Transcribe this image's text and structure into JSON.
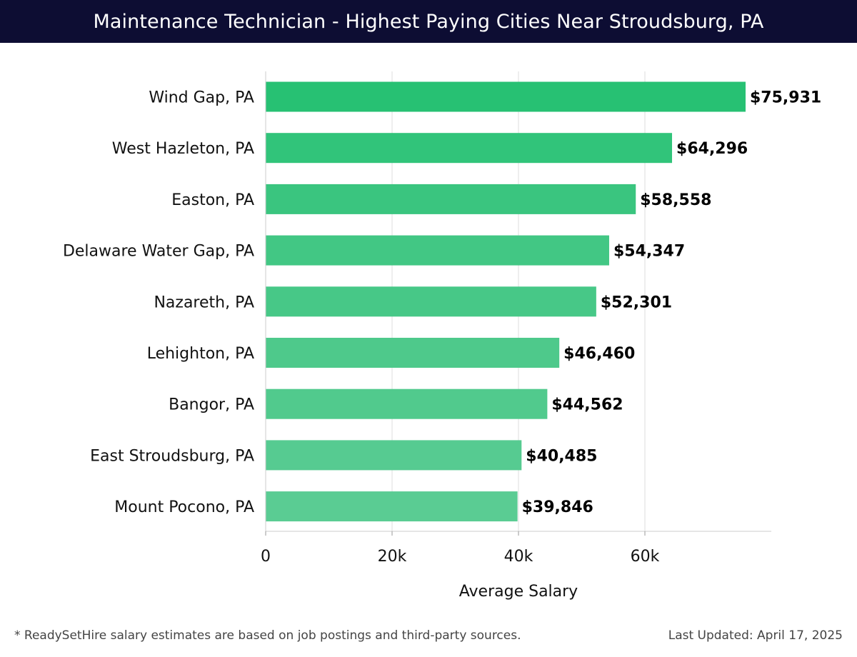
{
  "header": {
    "title": "Maintenance Technician - Highest Paying Cities Near Stroudsburg, PA"
  },
  "chart_data": {
    "type": "bar",
    "orientation": "horizontal",
    "title": "Maintenance Technician - Highest Paying Cities Near Stroudsburg, PA",
    "xlabel": "Average Salary",
    "ylabel": "",
    "xlim": [
      0,
      80000
    ],
    "xticks": [
      0,
      20000,
      40000,
      60000
    ],
    "xtick_labels": [
      "0",
      "20k",
      "40k",
      "60k"
    ],
    "grid": "vertical",
    "categories": [
      "Wind Gap, PA",
      "West Hazleton, PA",
      "Easton, PA",
      "Delaware Water Gap, PA",
      "Nazareth, PA",
      "Lehighton, PA",
      "Bangor, PA",
      "East Stroudsburg, PA",
      "Mount Pocono, PA"
    ],
    "values": [
      75931,
      64296,
      58558,
      54347,
      52301,
      46460,
      44562,
      40485,
      39846
    ],
    "value_labels": [
      "$75,931",
      "$64,296",
      "$58,558",
      "$54,347",
      "$52,301",
      "$46,460",
      "$44,562",
      "$40,485",
      "$39,846"
    ],
    "colors": [
      "#27c173",
      "#31c47a",
      "#3ac57f",
      "#42c784",
      "#47c887",
      "#4ec98b",
      "#51ca8d",
      "#56cb91",
      "#5acc93"
    ]
  },
  "footer": {
    "note": "* ReadySetHire salary estimates are based on job postings and third-party sources.",
    "updated": "Last Updated: April 17, 2025"
  }
}
